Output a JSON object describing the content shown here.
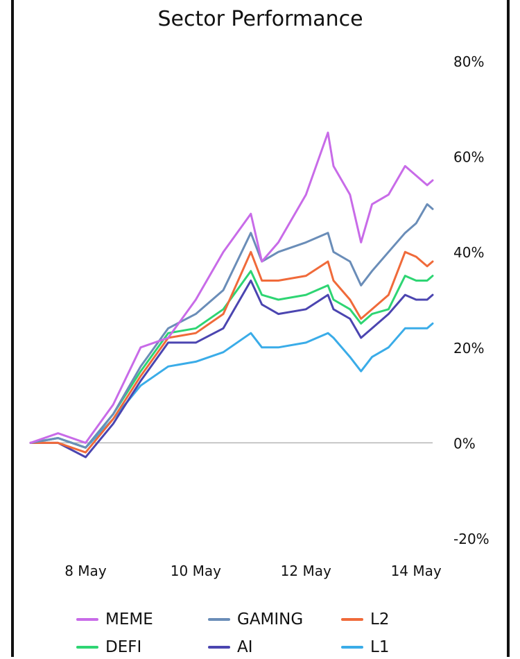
{
  "chart_data": {
    "type": "line",
    "title": "Sector Performance",
    "xlabel": "",
    "ylabel": "",
    "ylim": [
      -20,
      80
    ],
    "ytick_labels": [
      "80%",
      "60%",
      "40%",
      "20%",
      "0%",
      "-20%"
    ],
    "ytick_values": [
      80,
      60,
      40,
      20,
      0,
      -20
    ],
    "xlim": [
      7.0,
      14.3
    ],
    "xtick_labels": [
      "8 May",
      "10 May",
      "12 May",
      "14 May"
    ],
    "xtick_values": [
      8,
      10,
      12,
      14
    ],
    "zero_line": true,
    "legend_position": "bottom",
    "x": [
      7.0,
      7.5,
      8.0,
      8.5,
      9.0,
      9.5,
      10.0,
      10.5,
      11.0,
      11.2,
      11.5,
      12.0,
      12.4,
      12.5,
      12.8,
      13.0,
      13.2,
      13.5,
      13.8,
      14.0,
      14.2,
      14.3
    ],
    "series": [
      {
        "name": "MEME",
        "color": "#c86be8",
        "values": [
          0,
          2,
          0,
          8,
          20,
          22,
          30,
          40,
          48,
          38,
          42,
          52,
          65,
          58,
          52,
          42,
          50,
          52,
          58,
          56,
          54,
          55
        ]
      },
      {
        "name": "GAMING",
        "color": "#6a8db8",
        "values": [
          0,
          1,
          -1,
          6,
          16,
          24,
          27,
          32,
          44,
          38,
          40,
          42,
          44,
          40,
          38,
          33,
          36,
          40,
          44,
          46,
          50,
          49
        ]
      },
      {
        "name": "L2",
        "color": "#f06a3a",
        "values": [
          0,
          0,
          -2,
          5,
          14,
          22,
          23,
          27,
          40,
          34,
          34,
          35,
          38,
          34,
          30,
          26,
          28,
          31,
          40,
          39,
          37,
          38
        ]
      },
      {
        "name": "DEFI",
        "color": "#2ed573",
        "values": [
          0,
          1,
          -1,
          6,
          15,
          23,
          24,
          28,
          36,
          31,
          30,
          31,
          33,
          30,
          28,
          25,
          27,
          28,
          35,
          34,
          34,
          35
        ]
      },
      {
        "name": "AI",
        "color": "#4b45b0",
        "values": [
          0,
          0,
          -3,
          4,
          13,
          21,
          21,
          24,
          34,
          29,
          27,
          28,
          31,
          28,
          26,
          22,
          24,
          27,
          31,
          30,
          30,
          31
        ]
      },
      {
        "name": "L1",
        "color": "#3aace8",
        "values": [
          0,
          1,
          -1,
          5,
          12,
          16,
          17,
          19,
          23,
          20,
          20,
          21,
          23,
          22,
          18,
          15,
          18,
          20,
          24,
          24,
          24,
          25
        ]
      }
    ]
  }
}
